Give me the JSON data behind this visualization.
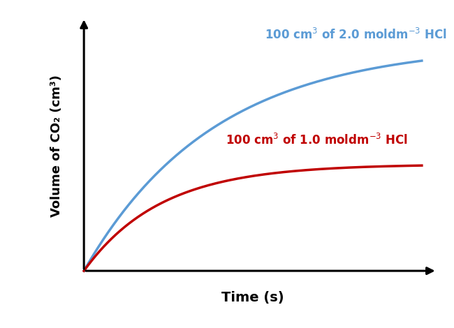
{
  "xlabel": "Time (s)",
  "ylabel": "Volume of CO₂ (cm³)",
  "curve1_annotation": "100 cm$^3$ of 2.0 moldm$^{-3}$ HCl",
  "curve1_color": "#5B9BD5",
  "curve1_k": 0.013,
  "curve1_asymptote": 1.0,
  "curve2_annotation": "100 cm$^3$ of 1.0 moldm$^{-3}$ HCl",
  "curve2_color": "#C00000",
  "curve2_k": 0.022,
  "curve2_asymptote": 0.47,
  "x_max": 200,
  "background_color": "#ffffff",
  "axis_color": "#000000",
  "xlabel_fontsize": 14,
  "ylabel_fontsize": 13,
  "annotation_fontsize": 12,
  "linewidth": 2.5
}
